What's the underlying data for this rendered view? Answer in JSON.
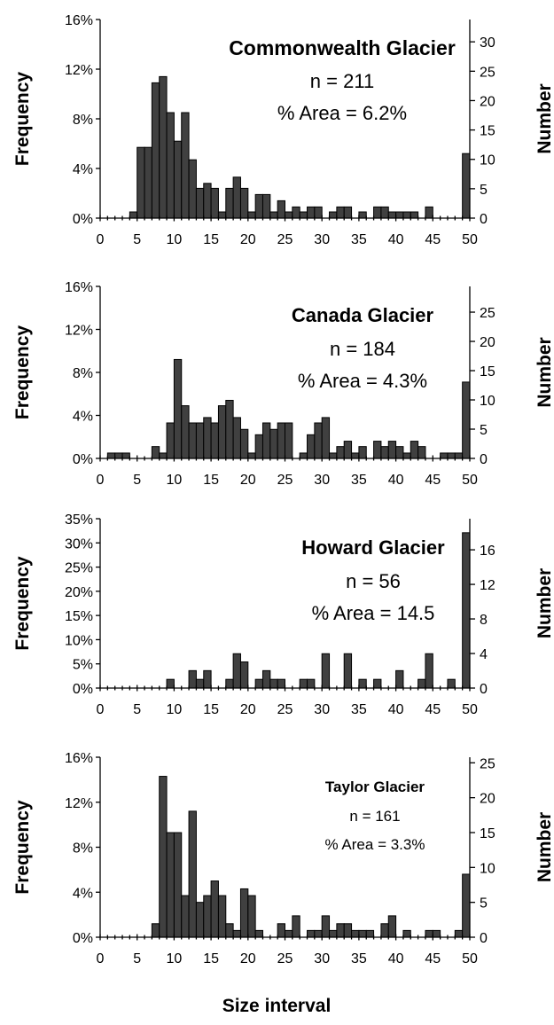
{
  "xlabel": "Size interval",
  "chart_data": [
    {
      "type": "bar",
      "title": "Commonwealth Glacier",
      "annotations": [
        "Commonwealth Glacier",
        "n = 211",
        "% Area = 6.2%"
      ],
      "ylabel": "Frequency",
      "y2label": "Number",
      "ylim": [
        0,
        16
      ],
      "yticks": [
        "0%",
        "4%",
        "8%",
        "12%",
        "16%"
      ],
      "yticks_values": [
        0,
        4,
        8,
        12,
        16
      ],
      "y2ticks": [
        "0",
        "5",
        "10",
        "15",
        "20",
        "25",
        "30"
      ],
      "y2ticks_values": [
        0,
        5,
        10,
        15,
        20,
        25,
        30
      ],
      "y2lim": [
        0,
        33.8
      ],
      "xticks": [
        "0",
        "5",
        "10",
        "15",
        "20",
        "25",
        "30",
        "35",
        "40",
        "45",
        "50"
      ],
      "x": [
        1,
        2,
        3,
        4,
        5,
        6,
        7,
        8,
        9,
        10,
        11,
        12,
        13,
        14,
        15,
        16,
        17,
        18,
        19,
        20,
        21,
        22,
        23,
        24,
        25,
        26,
        27,
        28,
        29,
        30,
        31,
        32,
        33,
        34,
        35,
        36,
        37,
        38,
        39,
        40,
        41,
        42,
        43,
        44,
        45,
        46,
        47,
        48,
        49,
        50
      ],
      "values": [
        0,
        0,
        0,
        0,
        0.5,
        5.7,
        5.7,
        10.9,
        11.4,
        8.5,
        6.2,
        8.5,
        4.7,
        2.4,
        2.8,
        2.4,
        0.5,
        2.4,
        3.3,
        2.4,
        0.5,
        1.9,
        1.9,
        0.5,
        1.4,
        0.5,
        0.9,
        0.5,
        0.9,
        0.9,
        0,
        0.5,
        0.9,
        0.9,
        0,
        0.5,
        0,
        0.9,
        0.9,
        0.5,
        0.5,
        0.5,
        0.5,
        0,
        0.9,
        0,
        0,
        0,
        0,
        5.2
      ]
    },
    {
      "type": "bar",
      "title": "Canada Glacier",
      "annotations": [
        "Canada Glacier",
        "n = 184",
        "% Area = 4.3%"
      ],
      "ylabel": "Frequency",
      "y2label": "Number",
      "ylim": [
        0,
        16
      ],
      "yticks": [
        "0%",
        "4%",
        "8%",
        "12%",
        "16%"
      ],
      "yticks_values": [
        0,
        4,
        8,
        12,
        16
      ],
      "y2ticks": [
        "0",
        "5",
        "10",
        "15",
        "20",
        "25"
      ],
      "y2ticks_values": [
        0,
        5,
        10,
        15,
        20,
        25
      ],
      "y2lim": [
        0,
        29.4
      ],
      "xticks": [
        "0",
        "5",
        "10",
        "15",
        "20",
        "25",
        "30",
        "35",
        "40",
        "45",
        "50"
      ],
      "x": [
        1,
        2,
        3,
        4,
        5,
        6,
        7,
        8,
        9,
        10,
        11,
        12,
        13,
        14,
        15,
        16,
        17,
        18,
        19,
        20,
        21,
        22,
        23,
        24,
        25,
        26,
        27,
        28,
        29,
        30,
        31,
        32,
        33,
        34,
        35,
        36,
        37,
        38,
        39,
        40,
        41,
        42,
        43,
        44,
        45,
        46,
        47,
        48,
        49,
        50
      ],
      "values": [
        0,
        0.5,
        0.5,
        0.5,
        0,
        0,
        0,
        1.1,
        0.5,
        3.3,
        9.2,
        4.9,
        3.3,
        3.3,
        3.8,
        3.3,
        4.9,
        5.4,
        3.8,
        2.7,
        0.5,
        2.2,
        3.3,
        2.7,
        3.3,
        3.3,
        0,
        0.5,
        2.2,
        3.3,
        3.8,
        0.5,
        1.1,
        1.6,
        0.5,
        1.1,
        0,
        1.6,
        1.1,
        1.6,
        1.1,
        0.5,
        1.6,
        1.1,
        0,
        0,
        0.5,
        0.5,
        0.5,
        7.1
      ]
    },
    {
      "type": "bar",
      "title": "Howard Glacier",
      "annotations": [
        "Howard Glacier",
        "n = 56",
        "% Area = 14.5"
      ],
      "ylabel": "Frequency",
      "y2label": "Number",
      "ylim": [
        0,
        35
      ],
      "yticks": [
        "0%",
        "5%",
        "10%",
        "15%",
        "20%",
        "25%",
        "30%",
        "35%"
      ],
      "yticks_values": [
        0,
        5,
        10,
        15,
        20,
        25,
        30,
        35
      ],
      "y2ticks": [
        "0",
        "4",
        "8",
        "12",
        "16"
      ],
      "y2ticks_values": [
        0,
        4,
        8,
        12,
        16
      ],
      "y2lim": [
        0,
        19.6
      ],
      "xticks": [
        "0",
        "5",
        "10",
        "15",
        "20",
        "25",
        "30",
        "35",
        "40",
        "45",
        "50"
      ],
      "x": [
        1,
        2,
        3,
        4,
        5,
        6,
        7,
        8,
        9,
        10,
        11,
        12,
        13,
        14,
        15,
        16,
        17,
        18,
        19,
        20,
        21,
        22,
        23,
        24,
        25,
        26,
        27,
        28,
        29,
        30,
        31,
        32,
        33,
        34,
        35,
        36,
        37,
        38,
        39,
        40,
        41,
        42,
        43,
        44,
        45,
        46,
        47,
        48,
        49,
        50
      ],
      "values": [
        0,
        0,
        0,
        0,
        0,
        0,
        0,
        0,
        0,
        1.8,
        0,
        0,
        3.6,
        1.8,
        3.6,
        0,
        0,
        1.8,
        7.1,
        5.4,
        0,
        1.8,
        3.6,
        1.8,
        1.8,
        0,
        0,
        1.8,
        1.8,
        0,
        7.1,
        0,
        0,
        7.1,
        0,
        1.8,
        0,
        1.8,
        0,
        0,
        3.6,
        0,
        0,
        1.8,
        7.1,
        0,
        0,
        1.8,
        0,
        32.1
      ]
    },
    {
      "type": "bar",
      "title": "Taylor Glacier",
      "annotations": [
        "Taylor Glacier",
        "n = 161",
        "% Area = 3.3%"
      ],
      "ylabel": "Frequency",
      "y2label": "Number",
      "ylim": [
        0,
        16
      ],
      "yticks": [
        "0%",
        "4%",
        "8%",
        "12%",
        "16%"
      ],
      "yticks_values": [
        0,
        4,
        8,
        12,
        16
      ],
      "y2ticks": [
        "0",
        "5",
        "10",
        "15",
        "20",
        "25"
      ],
      "y2ticks_values": [
        0,
        5,
        10,
        15,
        20,
        25
      ],
      "y2lim": [
        0,
        25.8
      ],
      "xticks": [
        "0",
        "5",
        "10",
        "15",
        "20",
        "25",
        "30",
        "35",
        "40",
        "45",
        "50"
      ],
      "x": [
        1,
        2,
        3,
        4,
        5,
        6,
        7,
        8,
        9,
        10,
        11,
        12,
        13,
        14,
        15,
        16,
        17,
        18,
        19,
        20,
        21,
        22,
        23,
        24,
        25,
        26,
        27,
        28,
        29,
        30,
        31,
        32,
        33,
        34,
        35,
        36,
        37,
        38,
        39,
        40,
        41,
        42,
        43,
        44,
        45,
        46,
        47,
        48,
        49,
        50
      ],
      "values": [
        0,
        0,
        0,
        0,
        0,
        0,
        0,
        1.2,
        14.3,
        9.3,
        9.3,
        3.7,
        11.2,
        3.1,
        3.7,
        5,
        3.7,
        1.2,
        0.6,
        4.3,
        3.7,
        0.6,
        0,
        0,
        1.2,
        0.6,
        1.9,
        0,
        0.6,
        0.6,
        1.9,
        0.6,
        1.2,
        1.2,
        0.6,
        0.6,
        0.6,
        0,
        1.2,
        1.9,
        0,
        0.6,
        0,
        0,
        0.6,
        0.6,
        0,
        0,
        0.6,
        5.6
      ]
    }
  ]
}
